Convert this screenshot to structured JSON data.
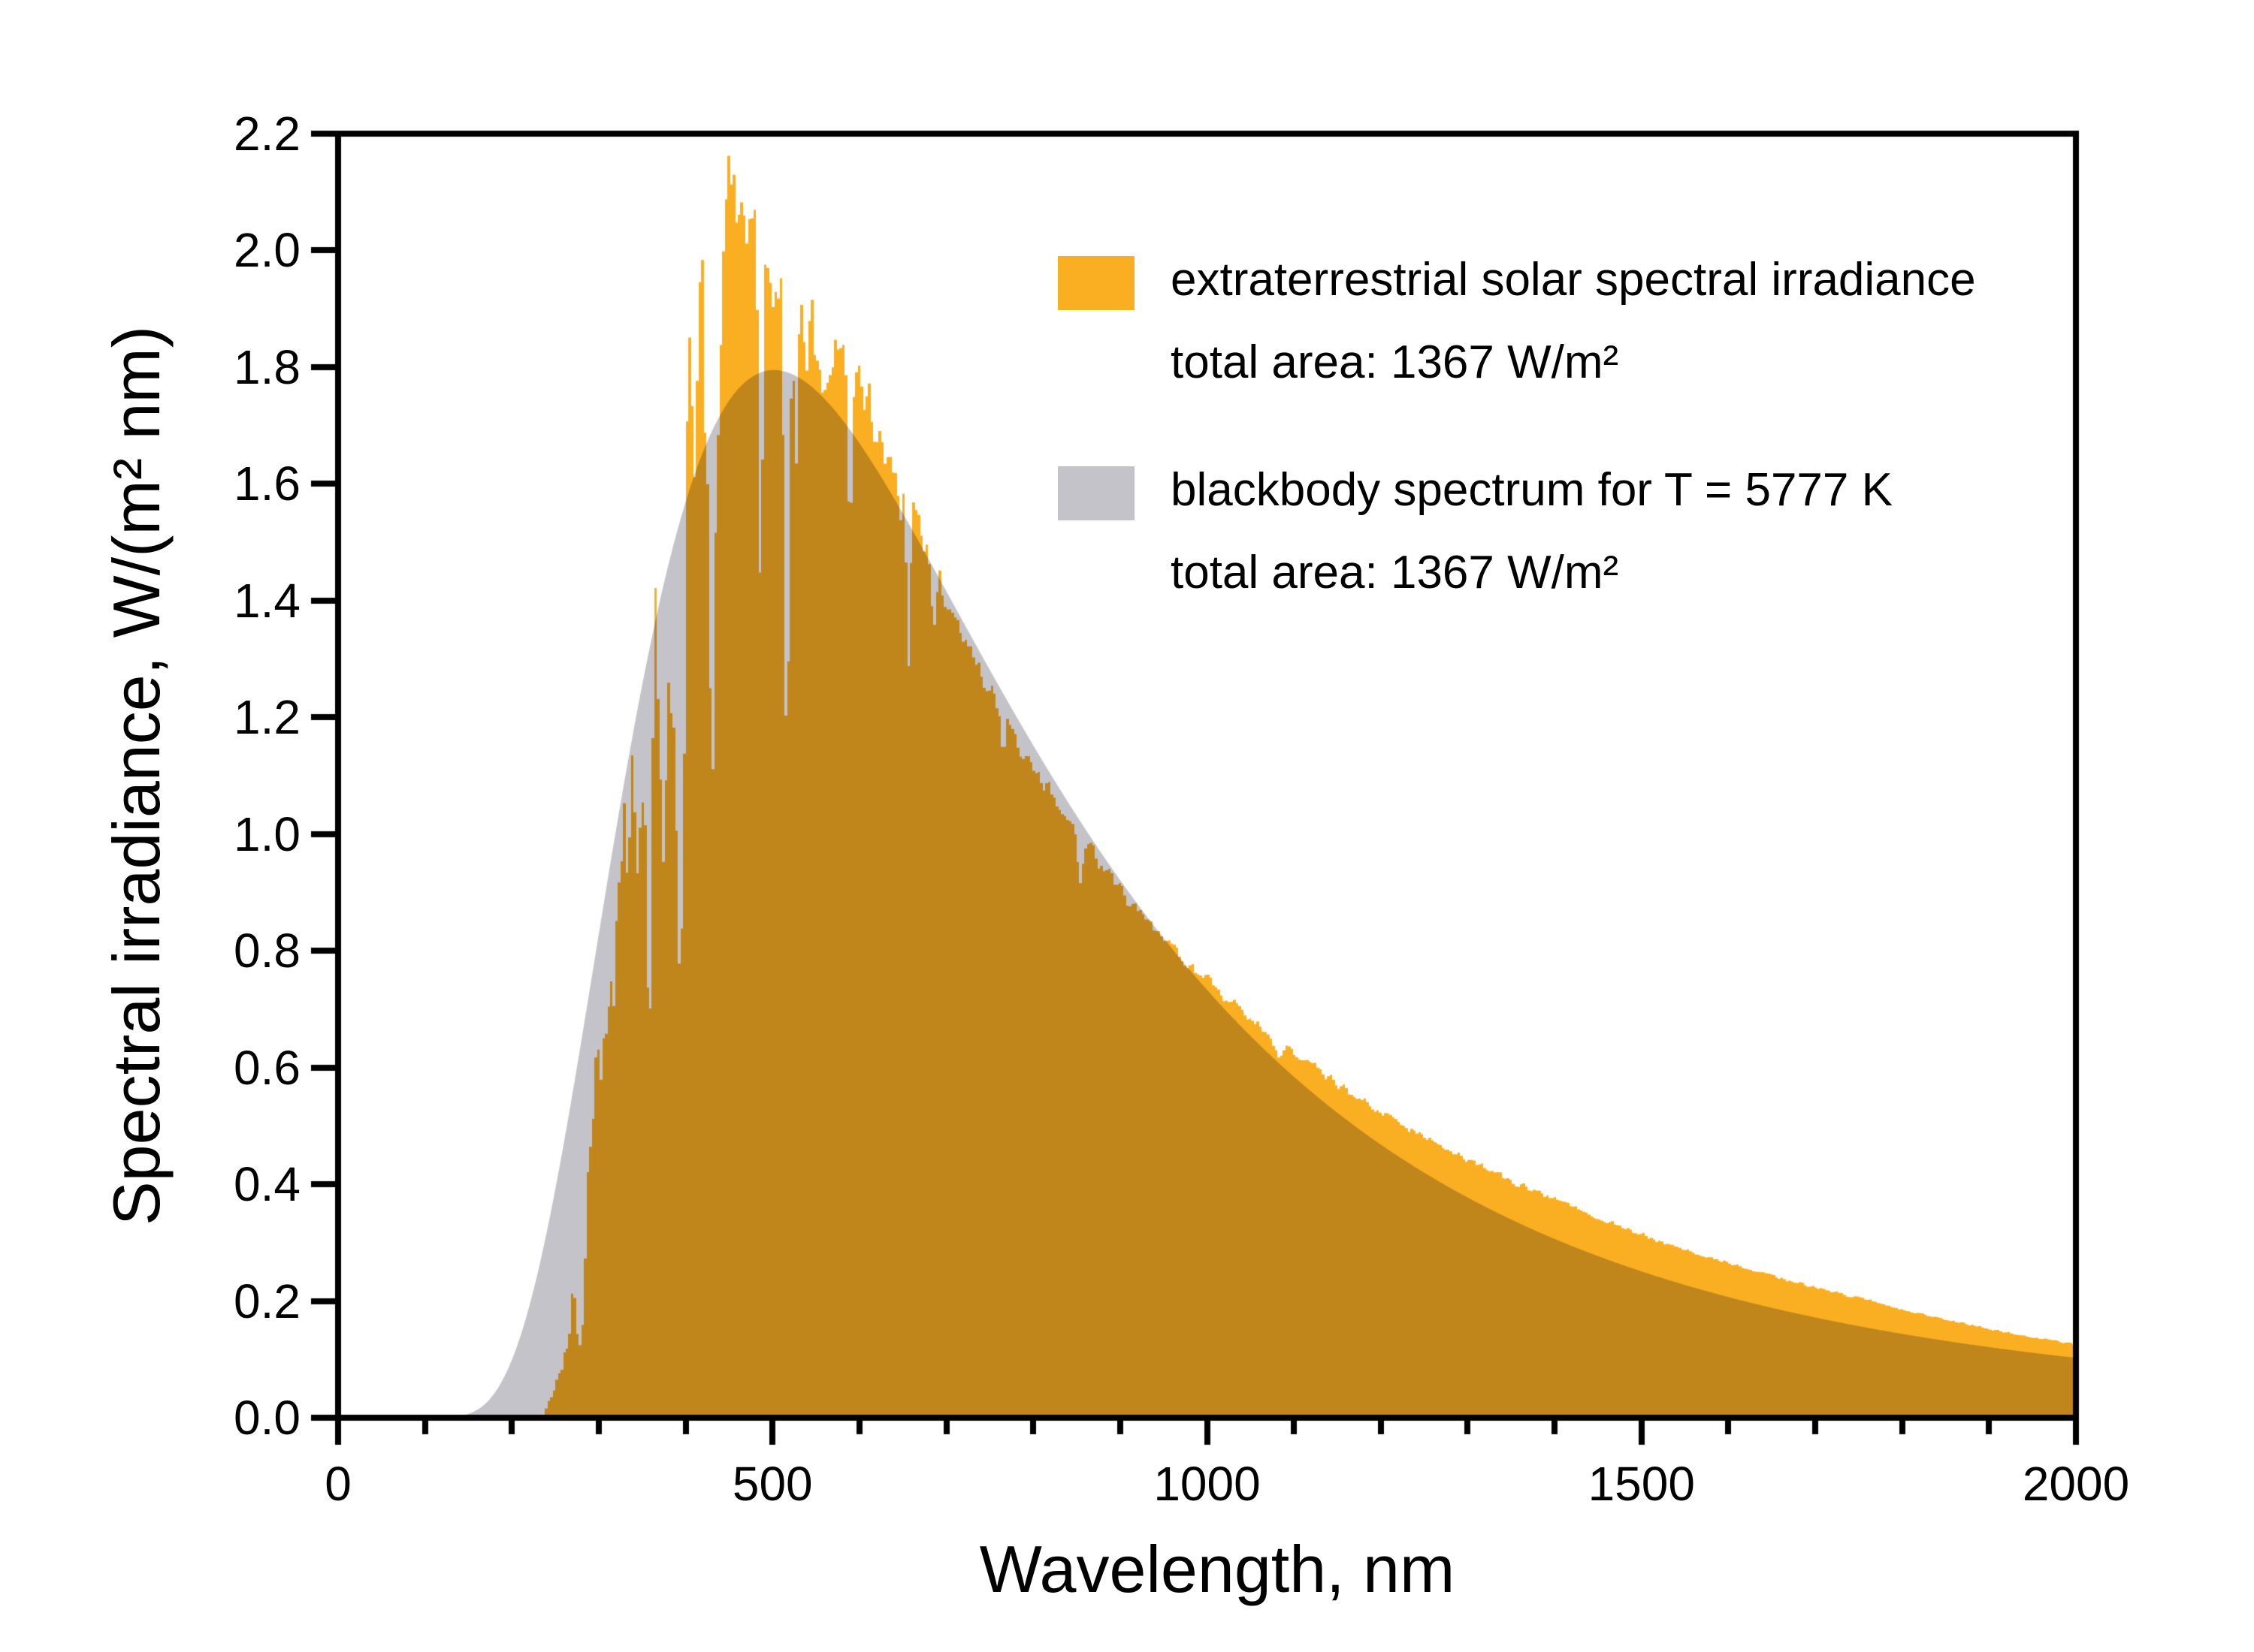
{
  "chart_data": {
    "type": "area",
    "title": "",
    "xlabel": "Wavelength, nm",
    "ylabel": "Spectral irradiance, W/(m² nm)",
    "xlim": [
      0,
      2000
    ],
    "ylim": [
      0,
      2.2
    ],
    "grid": false,
    "legend_position": "inside upper right",
    "x_tick_labels": [
      "0",
      "500",
      "1000",
      "1500",
      "2000"
    ],
    "x_major_ticks": [
      0,
      500,
      1000,
      1500,
      2000
    ],
    "x_minor_step_nm": 100,
    "y_tick_labels": [
      "0.0",
      "0.2",
      "0.4",
      "0.6",
      "0.8",
      "1.0",
      "1.2",
      "1.4",
      "1.6",
      "1.8",
      "2.0",
      "2.2"
    ],
    "y_tick_step": 0.2,
    "frame_color": "#000000",
    "overlap_rendering": "multiply",
    "series": [
      {
        "name": "extraterrestrial solar spectral irradiance",
        "note": "total area: 1367 W/m²",
        "color": "#FAAF22",
        "style": "filled noisy bars",
        "samples_nm_W_m2_nm": [
          [
            238,
            0.01
          ],
          [
            240,
            0.02
          ],
          [
            245,
            0.035
          ],
          [
            250,
            0.05
          ],
          [
            255,
            0.07
          ],
          [
            260,
            0.1
          ],
          [
            265,
            0.13
          ],
          [
            270,
            0.2
          ],
          [
            275,
            0.18
          ],
          [
            280,
            0.2
          ],
          [
            285,
            0.3
          ],
          [
            290,
            0.46
          ],
          [
            295,
            0.55
          ],
          [
            300,
            0.51
          ],
          [
            305,
            0.6
          ],
          [
            310,
            0.69
          ],
          [
            315,
            0.76
          ],
          [
            320,
            0.83
          ],
          [
            325,
            0.96
          ],
          [
            330,
            1.06
          ],
          [
            335,
            0.98
          ],
          [
            340,
            1.07
          ],
          [
            345,
            1.07
          ],
          [
            350,
            1.09
          ],
          [
            355,
            1.16
          ],
          [
            360,
            1.07
          ],
          [
            365,
            1.32
          ],
          [
            370,
            1.3
          ],
          [
            375,
            1.16
          ],
          [
            380,
            1.19
          ],
          [
            385,
            1.12
          ],
          [
            390,
            1.2
          ],
          [
            395,
            1.52
          ],
          [
            400,
            1.65
          ],
          [
            405,
            1.72
          ],
          [
            410,
            1.72
          ],
          [
            415,
            1.75
          ],
          [
            420,
            1.72
          ],
          [
            425,
            1.69
          ],
          [
            430,
            1.64
          ],
          [
            435,
            1.79
          ],
          [
            440,
            1.85
          ],
          [
            445,
            1.97
          ],
          [
            450,
            2.09
          ],
          [
            455,
            2.06
          ],
          [
            460,
            2.05
          ],
          [
            465,
            2.02
          ],
          [
            470,
            2.0
          ],
          [
            475,
            2.05
          ],
          [
            480,
            2.06
          ],
          [
            485,
            1.94
          ],
          [
            490,
            1.95
          ],
          [
            495,
            1.99
          ],
          [
            500,
            1.92
          ],
          [
            505,
            1.96
          ],
          [
            510,
            1.94
          ],
          [
            515,
            1.86
          ],
          [
            520,
            1.83
          ],
          [
            525,
            1.89
          ],
          [
            530,
            1.9
          ],
          [
            535,
            1.87
          ],
          [
            540,
            1.84
          ],
          [
            545,
            1.87
          ],
          [
            550,
            1.86
          ],
          [
            555,
            1.84
          ],
          [
            560,
            1.8
          ],
          [
            565,
            1.82
          ],
          [
            570,
            1.83
          ],
          [
            575,
            1.84
          ],
          [
            580,
            1.82
          ],
          [
            585,
            1.78
          ],
          [
            590,
            1.74
          ],
          [
            595,
            1.76
          ],
          [
            600,
            1.76
          ],
          [
            610,
            1.73
          ],
          [
            620,
            1.69
          ],
          [
            630,
            1.64
          ],
          [
            640,
            1.6
          ],
          [
            650,
            1.58
          ],
          [
            660,
            1.54
          ],
          [
            670,
            1.51
          ],
          [
            680,
            1.47
          ],
          [
            690,
            1.44
          ],
          [
            700,
            1.4
          ],
          [
            710,
            1.37
          ],
          [
            720,
            1.34
          ],
          [
            730,
            1.31
          ],
          [
            740,
            1.28
          ],
          [
            750,
            1.25
          ],
          [
            760,
            1.22
          ],
          [
            770,
            1.19
          ],
          [
            780,
            1.16
          ],
          [
            790,
            1.14
          ],
          [
            800,
            1.11
          ],
          [
            820,
            1.07
          ],
          [
            840,
            1.025
          ],
          [
            860,
            0.985
          ],
          [
            880,
            0.945
          ],
          [
            900,
            0.905
          ],
          [
            920,
            0.87
          ],
          [
            940,
            0.837
          ],
          [
            960,
            0.805
          ],
          [
            980,
            0.775
          ],
          [
            1000,
            0.748
          ],
          [
            1050,
            0.684
          ],
          [
            1100,
            0.625
          ],
          [
            1150,
            0.572
          ],
          [
            1200,
            0.524
          ],
          [
            1250,
            0.481
          ],
          [
            1300,
            0.442
          ],
          [
            1350,
            0.406
          ],
          [
            1400,
            0.373
          ],
          [
            1450,
            0.342
          ],
          [
            1500,
            0.314
          ],
          [
            1550,
            0.288
          ],
          [
            1600,
            0.264
          ],
          [
            1650,
            0.243
          ],
          [
            1700,
            0.224
          ],
          [
            1750,
            0.205
          ],
          [
            1800,
            0.186
          ],
          [
            1850,
            0.168
          ],
          [
            1900,
            0.152
          ],
          [
            1950,
            0.138
          ],
          [
            2000,
            0.125
          ]
        ]
      },
      {
        "name": "blackbody spectrum for T = 5777 K",
        "note": "total area: 1367 W/m²",
        "color": "#C4C3C9",
        "style": "filled smooth curve",
        "model": {
          "type": "planck",
          "temperature_K": 5777,
          "c2_nm_K": 14387700,
          "peak_nm": 501.6,
          "peak_value_W_m2_nm": 1.795
        },
        "samples_nm_W_m2_nm": [
          [
            100,
            0.0
          ],
          [
            200,
            0.099
          ],
          [
            300,
            0.827
          ],
          [
            400,
            1.569
          ],
          [
            500,
            1.795
          ],
          [
            600,
            1.669
          ],
          [
            700,
            1.416
          ],
          [
            800,
            1.152
          ],
          [
            900,
            0.92
          ],
          [
            1000,
            0.733
          ],
          [
            1100,
            0.584
          ],
          [
            1200,
            0.468
          ],
          [
            1300,
            0.377
          ],
          [
            1400,
            0.306
          ],
          [
            1500,
            0.251
          ],
          [
            1600,
            0.207
          ],
          [
            1700,
            0.172
          ],
          [
            1800,
            0.143
          ],
          [
            1900,
            0.121
          ],
          [
            2000,
            0.102
          ]
        ]
      }
    ],
    "render": {
      "solar_start_nm": 238,
      "bar_step_nm": 3,
      "clamp_max": 2.19,
      "noise_seed": 9,
      "noise_bands": [
        [
          238,
          300,
          0.3
        ],
        [
          300,
          420,
          0.17
        ],
        [
          420,
          560,
          0.05
        ],
        [
          560,
          700,
          0.032
        ],
        [
          700,
          1000,
          0.018
        ],
        [
          1000,
          1400,
          0.018
        ],
        [
          1400,
          2001,
          0.016
        ]
      ],
      "absorption_dips": [
        [
          279.5,
          0.5,
          6
        ],
        [
          358,
          0.45,
          6
        ],
        [
          374,
          0.18,
          5
        ],
        [
          393.4,
          0.5,
          6
        ],
        [
          396.8,
          0.28,
          5
        ],
        [
          410.2,
          0.1,
          4
        ],
        [
          430.8,
          0.38,
          6
        ],
        [
          438,
          0.12,
          4
        ],
        [
          486.1,
          0.28,
          5
        ],
        [
          516.7,
          0.45,
          6
        ],
        [
          527,
          0.12,
          4
        ],
        [
          589.0,
          0.16,
          5
        ],
        [
          656.3,
          0.2,
          5
        ],
        [
          686,
          0.07,
          5
        ],
        [
          766,
          0.06,
          5
        ],
        [
          854,
          0.1,
          6
        ],
        [
          1083,
          0.05,
          8
        ]
      ],
      "boosts": [
        [
          450,
          0.05,
          4
        ]
      ]
    }
  },
  "legend": {
    "entries": [
      {
        "label": "extraterrestrial solar spectral irradiance",
        "sublabel": "total area: 1367 W/m²",
        "swatch_color": "#FAAF22"
      },
      {
        "label": "blackbody spectrum for T = 5777 K",
        "sublabel": "total area: 1367 W/m²",
        "swatch_color": "#C4C3C9"
      }
    ]
  }
}
